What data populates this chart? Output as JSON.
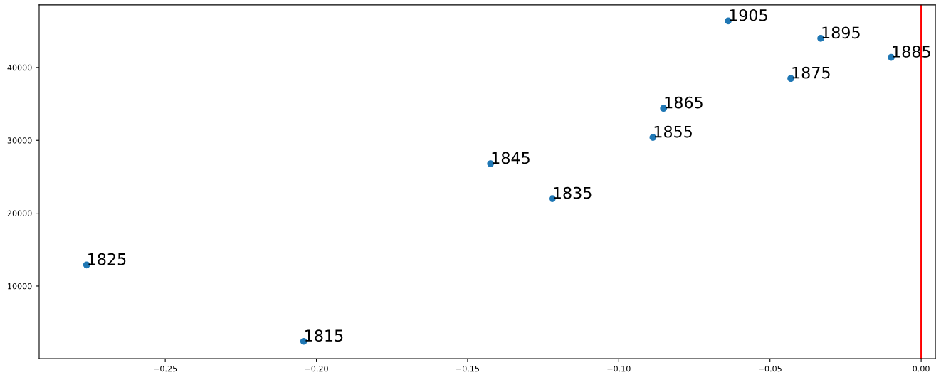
{
  "chart_data": {
    "type": "scatter",
    "color": "#1f77b4",
    "marker": "circle",
    "x": [
      -0.2042,
      -0.276,
      -0.122,
      -0.1424,
      -0.0887,
      -0.0852,
      -0.0431,
      -0.0099,
      -0.0332,
      -0.0638
    ],
    "values": [
      2400,
      12900,
      22000,
      26800,
      30400,
      34400,
      38500,
      41400,
      44000,
      46400
    ],
    "annotations": [
      {
        "text": "1815",
        "x": -0.2042,
        "y": 2400
      },
      {
        "text": "1825",
        "x": -0.276,
        "y": 12900
      },
      {
        "text": "1835",
        "x": -0.122,
        "y": 22000
      },
      {
        "text": "1845",
        "x": -0.1424,
        "y": 26800
      },
      {
        "text": "1855",
        "x": -0.0887,
        "y": 30400
      },
      {
        "text": "1865",
        "x": -0.0852,
        "y": 34400
      },
      {
        "text": "1875",
        "x": -0.0431,
        "y": 38500
      },
      {
        "text": "1885",
        "x": -0.0099,
        "y": 41400
      },
      {
        "text": "1895",
        "x": -0.0332,
        "y": 44000
      },
      {
        "text": "1905",
        "x": -0.0638,
        "y": 46400
      }
    ],
    "ref_lines": [
      {
        "axis": "x",
        "value": 0,
        "color": "#ff0000"
      }
    ],
    "xlim": [
      -0.2917,
      0.0047
    ],
    "ylim": [
      30,
      48600
    ],
    "xticks": [
      {
        "value": -0.25,
        "label": "−0.25"
      },
      {
        "value": -0.2,
        "label": "−0.20"
      },
      {
        "value": -0.15,
        "label": "−0.15"
      },
      {
        "value": -0.1,
        "label": "−0.10"
      },
      {
        "value": -0.05,
        "label": "−0.05"
      },
      {
        "value": 0,
        "label": "0.00"
      }
    ],
    "yticks": [
      10000,
      20000,
      30000,
      40000
    ]
  }
}
